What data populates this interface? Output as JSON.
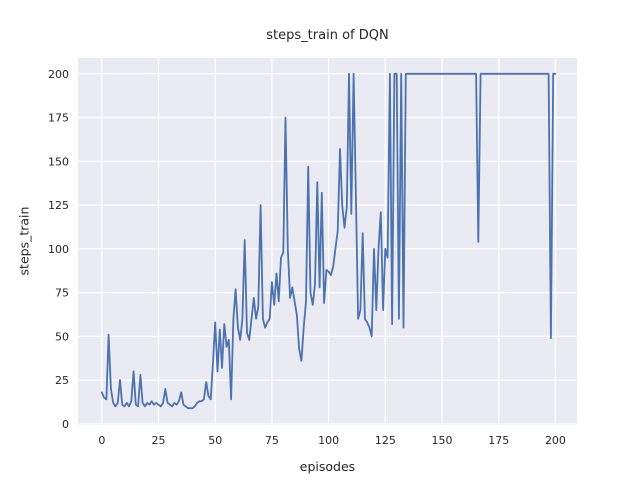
{
  "chart_data": {
    "type": "line",
    "title": "steps_train of DQN",
    "xlabel": "episodes",
    "ylabel": "steps_train",
    "legend": "none",
    "grid": true,
    "xlim": [
      -10.5,
      209.5
    ],
    "ylim": [
      -0.6,
      209.0
    ],
    "xticks": [
      0,
      25,
      50,
      75,
      100,
      125,
      150,
      175,
      200
    ],
    "yticks": [
      0,
      25,
      50,
      75,
      100,
      125,
      150,
      175,
      200
    ],
    "style": {
      "figure_bg": "#ffffff",
      "axes_bg": "#eaeaf2",
      "grid_color": "#ffffff",
      "line_color": "#4c72b0",
      "text_color": "#262626",
      "line_width": 1.8,
      "grid_width": 1.2,
      "tick_font_px": 11
    },
    "series": [
      {
        "name": "steps_train",
        "x_start": 0,
        "x_step": 1,
        "values": [
          18,
          15,
          14,
          51,
          20,
          12,
          10,
          12,
          25,
          11,
          10,
          12,
          10,
          13,
          30,
          11,
          10,
          28,
          12,
          10,
          12,
          11,
          13,
          11,
          12,
          11,
          10,
          12,
          20,
          12,
          11,
          10,
          12,
          11,
          13,
          18,
          11,
          10,
          9,
          9,
          9,
          10,
          12,
          13,
          13,
          14,
          24,
          16,
          14,
          35,
          58,
          30,
          54,
          32,
          57,
          44,
          48,
          14,
          60,
          77,
          55,
          48,
          60,
          105,
          52,
          48,
          60,
          72,
          60,
          67,
          125,
          60,
          55,
          58,
          60,
          81,
          68,
          86,
          70,
          95,
          98,
          175,
          100,
          72,
          78,
          70,
          62,
          43,
          36,
          55,
          70,
          147,
          75,
          68,
          80,
          138,
          78,
          132,
          69,
          88,
          87,
          85,
          90,
          100,
          110,
          157,
          125,
          112,
          124,
          200,
          120,
          200,
          130,
          60,
          65,
          109,
          60,
          58,
          55,
          50,
          100,
          65,
          100,
          121,
          65,
          100,
          95,
          200,
          57,
          200,
          200,
          60,
          200,
          55,
          200,
          200,
          200,
          200,
          200,
          200,
          200,
          200,
          200,
          200,
          200,
          200,
          200,
          200,
          200,
          200,
          200,
          200,
          200,
          200,
          200,
          200,
          200,
          200,
          200,
          200,
          200,
          200,
          200,
          200,
          200,
          200,
          104,
          200,
          200,
          200,
          200,
          200,
          200,
          200,
          200,
          200,
          200,
          200,
          200,
          200,
          200,
          200,
          200,
          200,
          200,
          200,
          200,
          200,
          200,
          200,
          200,
          200,
          200,
          200,
          200,
          200,
          200,
          200,
          49,
          200,
          200
        ]
      }
    ]
  }
}
